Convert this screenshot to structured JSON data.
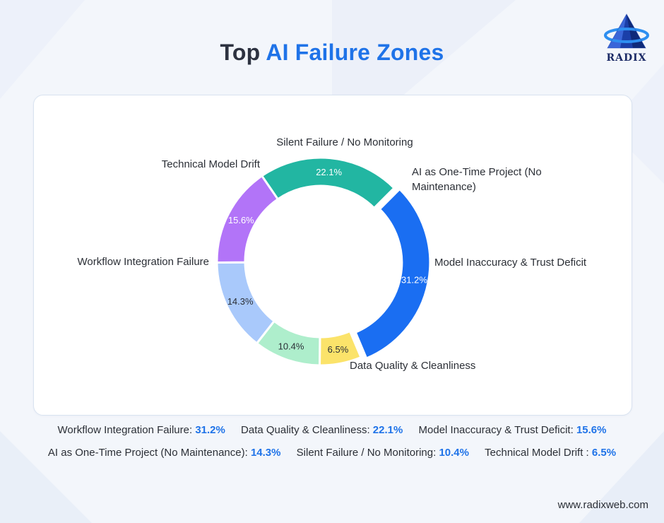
{
  "header": {
    "title_plain": "Top",
    "title_accent": "AI Failure Zones",
    "logo_text": "RADIX"
  },
  "chart_data": {
    "type": "pie",
    "variant": "donut",
    "title": "Top AI Failure Zones",
    "unit": "%",
    "slices": [
      {
        "label": "Workflow Integration Failure",
        "value": 31.2,
        "value_label": "31.2%",
        "color": "#1a6ef2"
      },
      {
        "label": "Technical Model Drift",
        "value": 6.5,
        "value_label": "6.5%",
        "color": "#fbe36a"
      },
      {
        "label": "Silent Failure / No Monitoring",
        "value": 10.4,
        "value_label": "10.4%",
        "color": "#aeeecc"
      },
      {
        "label": "AI as One-Time Project (No Maintenance)",
        "value": 14.3,
        "value_label": "14.3%",
        "color": "#a9c9fb"
      },
      {
        "label": "Model Inaccuracy & Trust Deficit",
        "value": 15.6,
        "value_label": "15.6%",
        "color": "#b274f8"
      },
      {
        "label": "Data Quality & Cleanliness",
        "value": 22.1,
        "value_label": "22.1%",
        "color": "#22b6a2"
      }
    ],
    "outer_labels": [
      {
        "lines": [
          "Workflow Integration Failure"
        ]
      },
      {
        "lines": [
          "Technical Model Drift"
        ]
      },
      {
        "lines": [
          "Silent Failure / No Monitoring"
        ]
      },
      {
        "lines": [
          "AI as One-Time Project (No",
          "Maintenance)"
        ]
      },
      {
        "lines": [
          "Model Inaccuracy & Trust Deficit"
        ]
      },
      {
        "lines": [
          "Data Quality & Cleanliness"
        ]
      }
    ],
    "exploded_slice": "Workflow Integration Failure",
    "legend": "bottom"
  },
  "legend": {
    "rows": [
      [
        {
          "label": "Workflow Integration Failure:",
          "value": "31.2%"
        },
        {
          "label": "Data Quality & Cleanliness:",
          "value": "22.1%"
        },
        {
          "label": "Model Inaccuracy & Trust Deficit:",
          "value": "15.6%"
        }
      ],
      [
        {
          "label": "AI as One-Time Project (No Maintenance):",
          "value": "14.3%"
        },
        {
          "label": "Silent Failure / No Monitoring:",
          "value": "10.4%"
        },
        {
          "label": "Technical Model Drift :",
          "value": "6.5%"
        }
      ]
    ]
  },
  "footer": {
    "website": "www.radixweb.com"
  }
}
